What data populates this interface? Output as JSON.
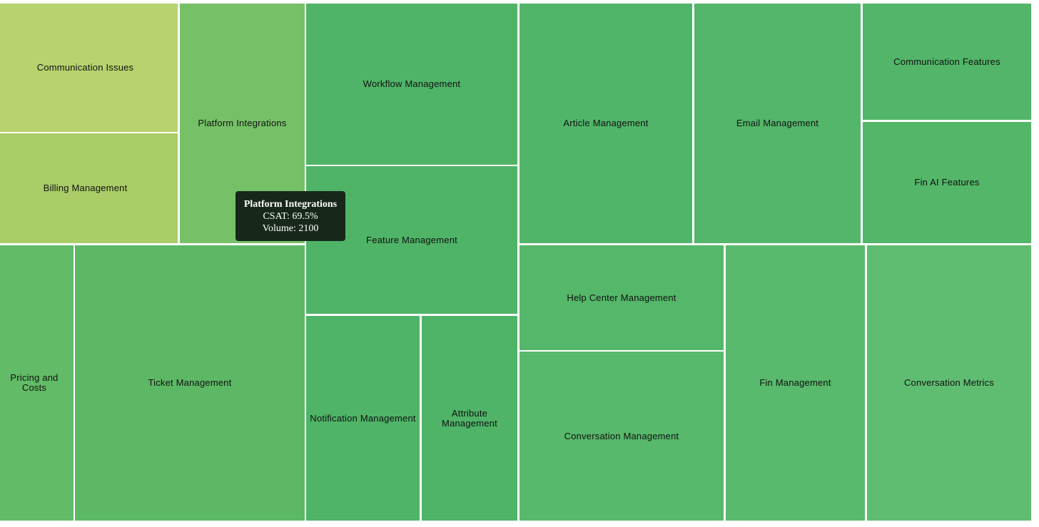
{
  "treemap": {
    "nodes": [
      {
        "label": "Communication Issues",
        "color": "#b6d36e"
      },
      {
        "label": "Billing Management",
        "color": "#aacd68"
      },
      {
        "label": "Platform Integrations",
        "color": "#76c168"
      },
      {
        "label": "Workflow Management",
        "color": "#50b468"
      },
      {
        "label": "Feature Management",
        "color": "#50b468"
      },
      {
        "label": "Article Management",
        "color": "#51b569"
      },
      {
        "label": "Email Management",
        "color": "#53b66a"
      },
      {
        "label": "Communication Features",
        "color": "#52b569"
      },
      {
        "label": "Fin AI Features",
        "color": "#53b669"
      },
      {
        "label": "Pricing and Costs",
        "color": "#62bb66"
      },
      {
        "label": "Ticket Management",
        "color": "#5db866"
      },
      {
        "label": "Notification Management",
        "color": "#4fb468"
      },
      {
        "label": "Attribute Management",
        "color": "#4fb468"
      },
      {
        "label": "Help Center Management",
        "color": "#54b76a"
      },
      {
        "label": "Conversation Management",
        "color": "#58b86c"
      },
      {
        "label": "Fin Management",
        "color": "#59b96c"
      },
      {
        "label": "Conversation Metrics",
        "color": "#5fbd72"
      }
    ]
  },
  "tooltip": {
    "title": "Platform Integrations",
    "lines": [
      "CSAT: 69.5%",
      "Volume: 2100"
    ]
  }
}
